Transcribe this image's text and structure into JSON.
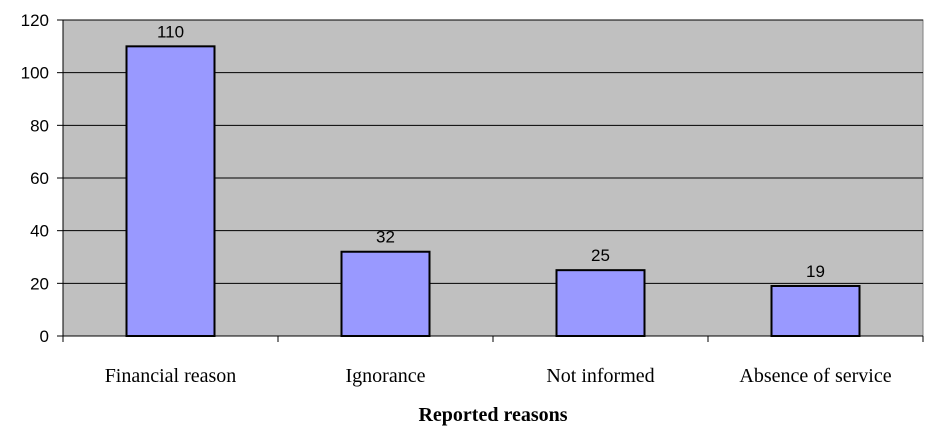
{
  "chart_data": {
    "type": "bar",
    "categories": [
      "Financial reason",
      "Ignorance",
      "Not informed",
      "Absence of service"
    ],
    "values": [
      110,
      32,
      25,
      19
    ],
    "data_labels": [
      "110",
      "32",
      "25",
      "19"
    ],
    "xlabel": "Reported reasons",
    "ylabel": "",
    "ylim": [
      0,
      120
    ],
    "yticks": [
      0,
      20,
      40,
      60,
      80,
      100,
      120
    ],
    "ytick_labels": [
      "0",
      "20",
      "40",
      "60",
      "80",
      "100",
      "120"
    ],
    "grid": true,
    "legend": "none",
    "colors": {
      "plot_background": "#c0c0c0",
      "bar_fill": "#9999ff",
      "bar_stroke": "#000000",
      "grid": "#000000"
    }
  }
}
